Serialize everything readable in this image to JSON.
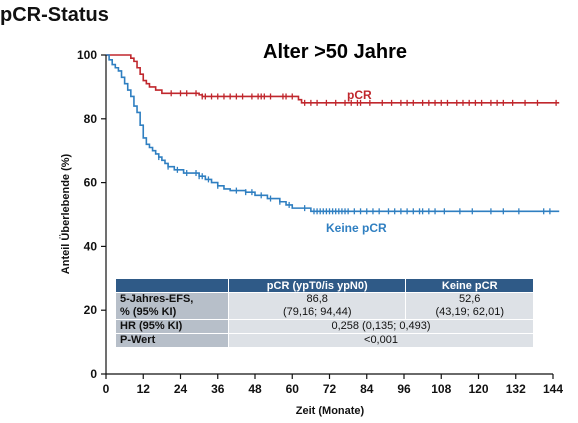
{
  "slide": {
    "heading": "pCR-Status"
  },
  "chart_data": {
    "type": "line",
    "title": "Alter >50 Jahre",
    "xlabel": "Zeit (Monate)",
    "ylabel": "Anteil Überlebende (%)",
    "xlim": [
      0,
      144
    ],
    "ylim": [
      0,
      100
    ],
    "x_ticks": [
      0,
      12,
      24,
      36,
      48,
      60,
      72,
      84,
      96,
      108,
      120,
      132,
      144
    ],
    "y_ticks": [
      0,
      20,
      40,
      60,
      80,
      100
    ],
    "grid": false,
    "series": [
      {
        "name": "pCR",
        "color": "#c0272d",
        "steps": [
          [
            0,
            100
          ],
          [
            7,
            100
          ],
          [
            8,
            99
          ],
          [
            9,
            98
          ],
          [
            10,
            96
          ],
          [
            11,
            94
          ],
          [
            12,
            92
          ],
          [
            13,
            91
          ],
          [
            14,
            90
          ],
          [
            16,
            89
          ],
          [
            18,
            88
          ],
          [
            30,
            87.5
          ],
          [
            31,
            87
          ],
          [
            62,
            86
          ],
          [
            63,
            85
          ],
          [
            146,
            85
          ]
        ],
        "censor": [
          21,
          24,
          26,
          29,
          31,
          32,
          34,
          36,
          38,
          40,
          42,
          44,
          47,
          49,
          50,
          51,
          53,
          57,
          58,
          60,
          64,
          66,
          68,
          71,
          74,
          77,
          79,
          81,
          82,
          85,
          89,
          92,
          95,
          97,
          99,
          102,
          104,
          106,
          108,
          110,
          113,
          115,
          117,
          119,
          121,
          124,
          126,
          128,
          131,
          135,
          139,
          145
        ]
      },
      {
        "name": "Keine pCR",
        "color": "#2f7fc1",
        "steps": [
          [
            0,
            100
          ],
          [
            1,
            98.5
          ],
          [
            2,
            97
          ],
          [
            3,
            96
          ],
          [
            4,
            95
          ],
          [
            5,
            93
          ],
          [
            6,
            91
          ],
          [
            7,
            89
          ],
          [
            8,
            87
          ],
          [
            9,
            84
          ],
          [
            10,
            82
          ],
          [
            11,
            78
          ],
          [
            12,
            74
          ],
          [
            13,
            72
          ],
          [
            14,
            71
          ],
          [
            15,
            70
          ],
          [
            16,
            69
          ],
          [
            17,
            68
          ],
          [
            18,
            67
          ],
          [
            19,
            66
          ],
          [
            20,
            65
          ],
          [
            22,
            64
          ],
          [
            25,
            63
          ],
          [
            30,
            62
          ],
          [
            32,
            61
          ],
          [
            34,
            60
          ],
          [
            36,
            59
          ],
          [
            38,
            58
          ],
          [
            40,
            57.5
          ],
          [
            45,
            57
          ],
          [
            48,
            56
          ],
          [
            52,
            55
          ],
          [
            56,
            54
          ],
          [
            58,
            53
          ],
          [
            60,
            52
          ],
          [
            64,
            52
          ],
          [
            66,
            51
          ],
          [
            146,
            51
          ]
        ],
        "censor": [
          17,
          20,
          23,
          26,
          29,
          30,
          31,
          33,
          36,
          42,
          45,
          47,
          50,
          53,
          56,
          59,
          64,
          67,
          68,
          69,
          70,
          71,
          72,
          73,
          74,
          75,
          76,
          77,
          78,
          80,
          82,
          84,
          86,
          88,
          91,
          93,
          95,
          97,
          99,
          101,
          102,
          104,
          106,
          109,
          114,
          118,
          124,
          128,
          133,
          141,
          143
        ]
      }
    ],
    "labels": {
      "pcr": "pCR",
      "no_pcr": "Keine pCR"
    }
  },
  "table": {
    "headers": [
      "",
      "pCR (ypT0/is ypN0)",
      "Keine pCR"
    ],
    "rows": [
      {
        "label_line1": "5-Jahres-EFS,",
        "label_line2": "% (95% KI)",
        "pcr_line1": "86,8",
        "pcr_line2": "(79,16; 94,44)",
        "nopcr_line1": "52,6",
        "nopcr_line2": "(43,19; 62,01)"
      },
      {
        "label": "HR (95% KI)",
        "value": "0,258 (0,135; 0,493)"
      },
      {
        "label": "P-Wert",
        "value": "<0,001"
      }
    ]
  }
}
